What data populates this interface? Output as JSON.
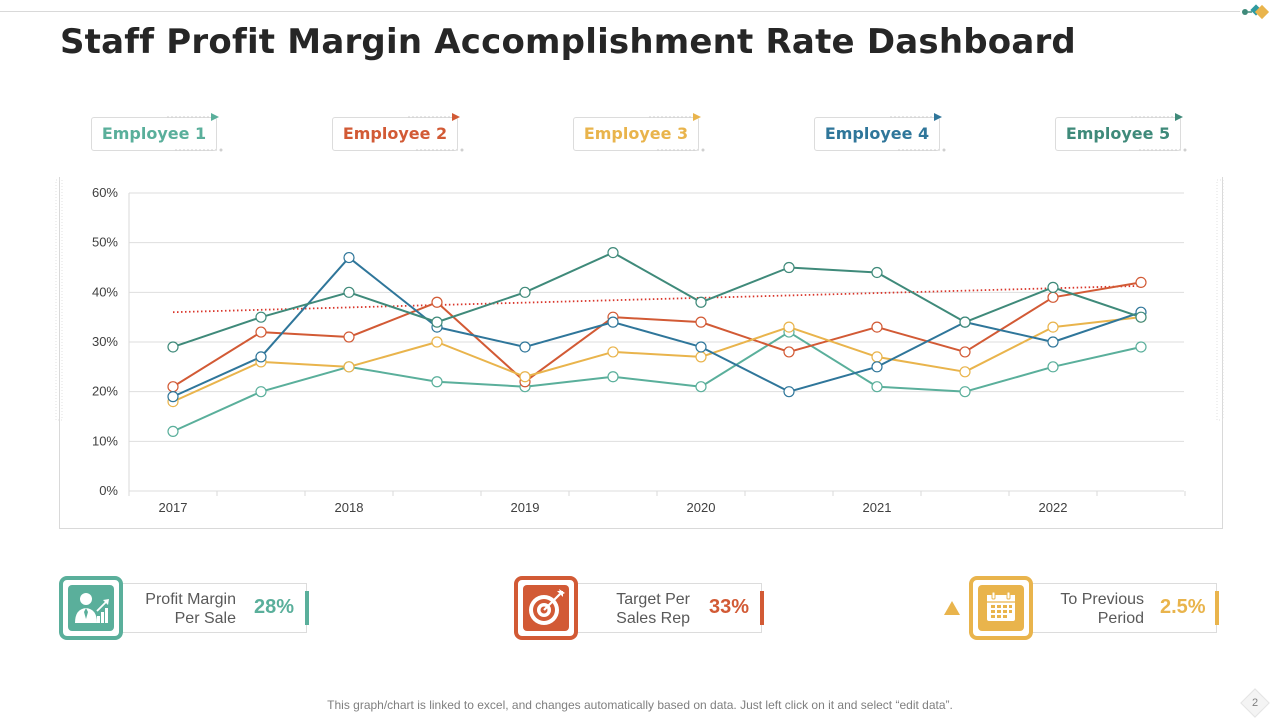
{
  "title": "Staff Profit Margin Accomplishment Rate Dashboard",
  "colors": {
    "employee_1": "#5aaf9b",
    "employee_2": "#d25a35",
    "employee_3": "#e9b44c",
    "employee_4": "#2f769a",
    "employee_5": "#3f8a7a",
    "trend": "#d9362b"
  },
  "employees": [
    {
      "label": "Employee 1",
      "color": "#5aaf9b"
    },
    {
      "label": "Employee 2",
      "color": "#d25a35"
    },
    {
      "label": "Employee 3",
      "color": "#e9b44c"
    },
    {
      "label": "Employee 4",
      "color": "#2f769a"
    },
    {
      "label": "Employee 5",
      "color": "#3f8a7a"
    }
  ],
  "chart_data": {
    "type": "line",
    "title": "",
    "xlabel": "",
    "ylabel": "",
    "ylim": [
      0,
      60
    ],
    "y_ticks": [
      "0%",
      "10%",
      "20%",
      "30%",
      "40%",
      "50%",
      "60%"
    ],
    "x_tick_labels": [
      "2017",
      "2018",
      "2019",
      "2020",
      "2021",
      "2022"
    ],
    "x": [
      2017,
      2017.5,
      2018,
      2018.5,
      2019,
      2019.5,
      2020,
      2020.5,
      2021,
      2021.5,
      2022,
      2022.5
    ],
    "grid": true,
    "series": [
      {
        "name": "Employee 1",
        "color": "#5aaf9b",
        "values": [
          12,
          20,
          25,
          22,
          21,
          23,
          21,
          32,
          21,
          20,
          25,
          29
        ]
      },
      {
        "name": "Employee 2",
        "color": "#d25a35",
        "values": [
          21,
          32,
          31,
          38,
          22,
          35,
          34,
          28,
          33,
          28,
          39,
          42
        ]
      },
      {
        "name": "Employee 3",
        "color": "#e9b44c",
        "values": [
          18,
          26,
          25,
          30,
          23,
          28,
          27,
          33,
          27,
          24,
          33,
          35
        ]
      },
      {
        "name": "Employee 4",
        "color": "#2f769a",
        "values": [
          19,
          27,
          47,
          33,
          29,
          34,
          29,
          20,
          25,
          34,
          30,
          36
        ]
      },
      {
        "name": "Employee 5",
        "color": "#3f8a7a",
        "values": [
          29,
          35,
          40,
          34,
          40,
          48,
          38,
          45,
          44,
          34,
          41,
          35
        ]
      }
    ],
    "trendline": {
      "name": "Employee 2 trend",
      "color": "#d9362b",
      "style": "dotted",
      "start": 36,
      "end": 41.3
    }
  },
  "kpis": [
    {
      "label_line1": "Profit Margin",
      "label_line2": "Per Sale",
      "value": "28%",
      "color": "#5aaf9b",
      "icon": "businessman-growth-icon"
    },
    {
      "label_line1": "Target Per",
      "label_line2": "Sales Rep",
      "value": "33%",
      "color": "#d25a35",
      "icon": "target-icon"
    },
    {
      "label_line1": "To Previous",
      "label_line2": "Period",
      "value": "2.5%",
      "color": "#e9b44c",
      "icon": "calendar-icon",
      "indicator": "up-triangle-icon"
    }
  ],
  "footnote": "This graph/chart is linked to excel, and changes automatically based on data. Just left click on it and select “edit data”.",
  "page_number": "2"
}
